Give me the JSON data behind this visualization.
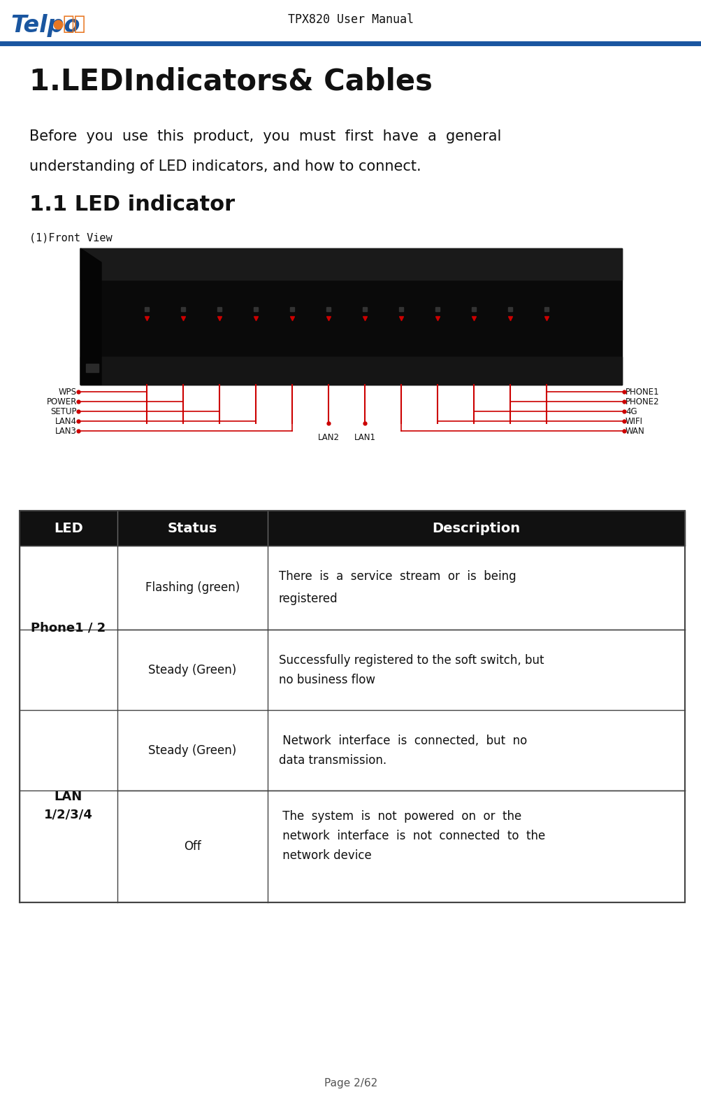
{
  "page_bg": "#ffffff",
  "header_line_color": "#1a56a0",
  "header_text": "TPX820 User Manual",
  "logo_telpo_blue": "#1a56a0",
  "logo_telpo_orange": "#e87722",
  "chapter_title": "1.LEDIndicators& Cables",
  "intro_line1": "Before  you  use  this  product,  you  must  first  have  a  general",
  "intro_line2": "understanding of LED indicators, and how to connect.",
  "section_title": "1.1 LED indicator",
  "front_view_label": "(1)Front View",
  "table_header_bg": "#111111",
  "table_header_color": "#ffffff",
  "table_border_color": "#444444",
  "table_col_headers": [
    "LED",
    "Status",
    "Description"
  ],
  "footer_text": "Page 2/62",
  "red_line_color": "#cc0000",
  "left_labels": [
    "WPS",
    "POWER",
    "SETUP",
    "LAN4",
    "LAN3"
  ],
  "right_labels": [
    "PHONE1",
    "PHONE2",
    "4G",
    "WIFI",
    "WAN"
  ],
  "bottom_labels": [
    "LAN2",
    "LAN1"
  ],
  "row0_status": "Flashing (green)",
  "row0_desc1": "There  is  a  service  stream  or  is  being",
  "row0_desc2": "registered",
  "row1_status": "Steady (Green)",
  "row1_desc1": "Successfully registered to the soft switch, but",
  "row1_desc2": "no business flow",
  "row2_status": "Steady (Green)",
  "row2_desc1": " Network  interface  is  connected,  but  no",
  "row2_desc2": "data transmission.",
  "row3_status": "Off",
  "row3_desc1": " The  system  is  not  powered  on  or  the",
  "row3_desc2": " network  interface  is  not  connected  to  the",
  "row3_desc3": " network device",
  "led1_text1": "Phone1 / 2",
  "led2_text1": "LAN",
  "led2_text2": "1/2/3/4"
}
